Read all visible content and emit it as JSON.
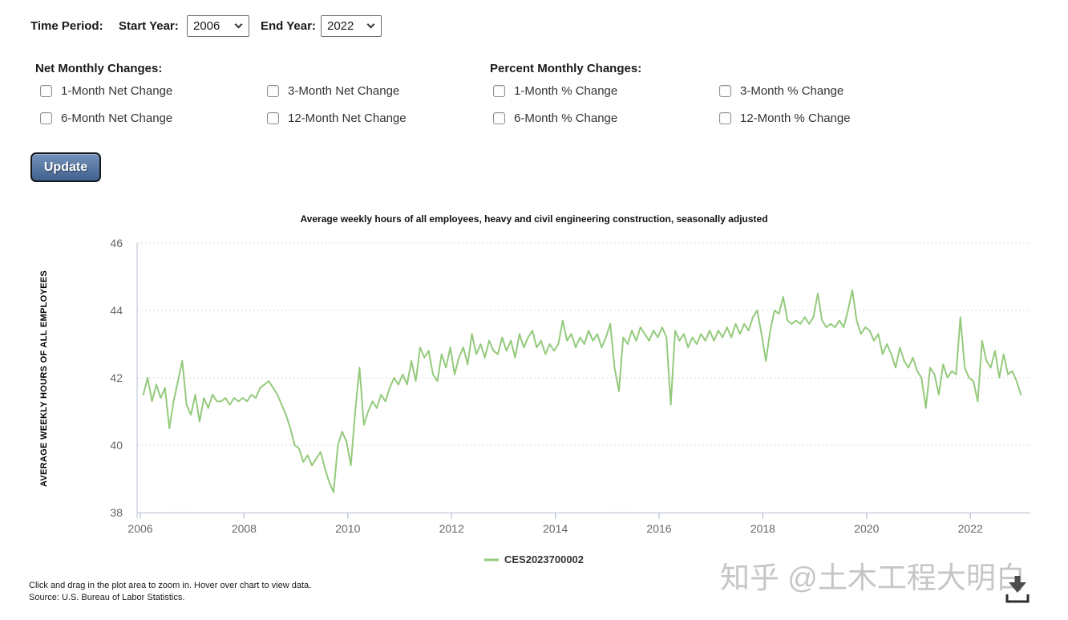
{
  "controls": {
    "time_period_label": "Time Period:",
    "start_year_label": "Start Year:",
    "start_year_value": "2006",
    "end_year_label": "End Year:",
    "end_year_value": "2022",
    "net_header": "Net Monthly Changes:",
    "percent_header": "Percent Monthly Changes:",
    "net_options": [
      "1-Month Net Change",
      "3-Month Net Change",
      "6-Month Net Change",
      "12-Month Net Change"
    ],
    "percent_options": [
      "1-Month % Change",
      "3-Month % Change",
      "6-Month % Change",
      "12-Month % Change"
    ],
    "update_label": "Update"
  },
  "chart_data": {
    "type": "line",
    "title": "Average weekly hours of all employees, heavy and civil engineering construction, seasonally adjusted",
    "ylabel": "AVERAGE WEEKLY HOURS OF ALL EMPLOYEES",
    "series_name": "CES2023700002",
    "line_color": "#94ca7c",
    "grid_color": "#d9d9d9",
    "axis_color": "#cdd3de",
    "tick_label_color": "#666666",
    "ylim": [
      38,
      46
    ],
    "y_ticks": [
      46,
      44,
      42,
      40,
      38
    ],
    "x_ticks": [
      2006,
      2008,
      2010,
      2012,
      2014,
      2016,
      2018,
      2020,
      2022
    ],
    "start_year": 2006,
    "frequency": "monthly",
    "legend_position": "bottom-center",
    "grid": "horizontal-dotted",
    "values": [
      41.5,
      42.0,
      41.3,
      41.8,
      41.4,
      41.7,
      40.5,
      41.3,
      41.9,
      42.5,
      41.2,
      40.9,
      41.5,
      40.7,
      41.4,
      41.1,
      41.5,
      41.3,
      41.3,
      41.4,
      41.2,
      41.4,
      41.3,
      41.4,
      41.3,
      41.5,
      41.4,
      41.7,
      41.8,
      41.9,
      41.7,
      41.5,
      41.2,
      40.9,
      40.5,
      40.0,
      39.9,
      39.5,
      39.7,
      39.4,
      39.6,
      39.8,
      39.3,
      38.9,
      38.6,
      40.0,
      40.4,
      40.1,
      39.4,
      41.0,
      42.3,
      40.6,
      41.0,
      41.3,
      41.1,
      41.5,
      41.3,
      41.7,
      42.0,
      41.8,
      42.1,
      41.8,
      42.5,
      41.9,
      42.9,
      42.6,
      42.8,
      42.1,
      41.9,
      42.7,
      42.3,
      42.9,
      42.1,
      42.6,
      42.9,
      42.4,
      43.3,
      42.7,
      43.0,
      42.6,
      43.1,
      42.8,
      42.7,
      43.2,
      42.8,
      43.1,
      42.6,
      43.3,
      42.9,
      43.2,
      43.4,
      42.9,
      43.1,
      42.7,
      43.0,
      42.8,
      43.0,
      43.7,
      43.1,
      43.3,
      42.9,
      43.2,
      43.0,
      43.4,
      43.1,
      43.3,
      42.9,
      43.2,
      43.6,
      42.3,
      41.6,
      43.2,
      43.0,
      43.4,
      43.1,
      43.5,
      43.3,
      43.1,
      43.4,
      43.2,
      43.5,
      43.2,
      41.2,
      43.4,
      43.1,
      43.3,
      42.9,
      43.2,
      43.0,
      43.3,
      43.1,
      43.4,
      43.1,
      43.4,
      43.2,
      43.5,
      43.2,
      43.6,
      43.3,
      43.6,
      43.4,
      43.8,
      44.0,
      43.3,
      42.5,
      43.4,
      44.0,
      43.9,
      44.4,
      43.7,
      43.6,
      43.7,
      43.6,
      43.8,
      43.6,
      43.8,
      44.5,
      43.7,
      43.5,
      43.6,
      43.5,
      43.7,
      43.5,
      44.0,
      44.6,
      43.7,
      43.3,
      43.5,
      43.4,
      43.1,
      43.3,
      42.7,
      43.0,
      42.7,
      42.3,
      42.9,
      42.5,
      42.3,
      42.6,
      42.2,
      42.0,
      41.1,
      42.3,
      42.1,
      41.5,
      42.4,
      42.0,
      42.2,
      42.1,
      43.8,
      42.3,
      42.0,
      41.9,
      41.3,
      43.1,
      42.5,
      42.3,
      42.8,
      42.0,
      42.7,
      42.1,
      42.2,
      41.9,
      41.5
    ]
  },
  "footer": {
    "hint": "Click and drag in the plot area to zoom in. Hover over chart to view data.",
    "source": "Source: U.S. Bureau of Labor Statistics."
  },
  "watermark": "知乎 @土木工程大明白"
}
